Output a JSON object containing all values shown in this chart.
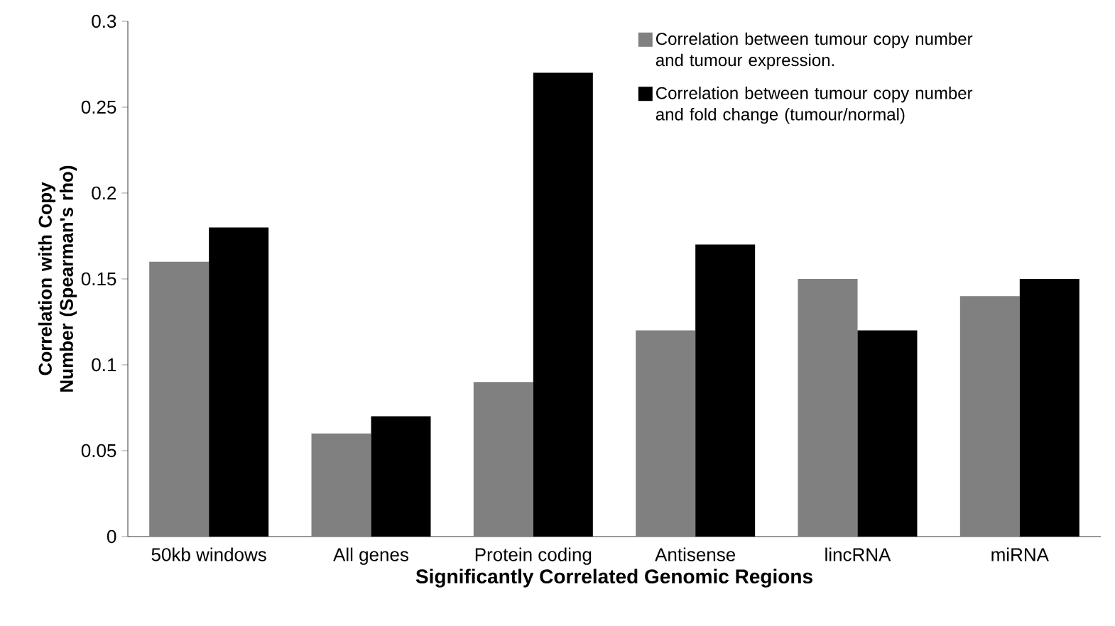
{
  "chart_data": {
    "type": "bar",
    "xlabel": "Significantly Correlated Genomic Regions",
    "ylabel": "Correlation with Copy Number (Spearman's rho)",
    "categories": [
      "50kb windows",
      "All genes",
      "Protein coding",
      "Antisense",
      "lincRNA",
      "miRNA"
    ],
    "series": [
      {
        "name": "Correlation between tumour copy number and tumour expression.",
        "color": "#808080",
        "values": [
          0.16,
          0.06,
          0.09,
          0.12,
          0.15,
          0.14
        ]
      },
      {
        "name": "Correlation between tumour copy number and fold change (tumour/normal)",
        "color": "#000000",
        "values": [
          0.18,
          0.07,
          0.27,
          0.17,
          0.12,
          0.15
        ]
      }
    ],
    "ylim": [
      0,
      0.3
    ],
    "yticks": [
      0,
      0.05,
      0.1,
      0.15,
      0.2,
      0.25,
      0.3
    ],
    "legend": "top right"
  }
}
